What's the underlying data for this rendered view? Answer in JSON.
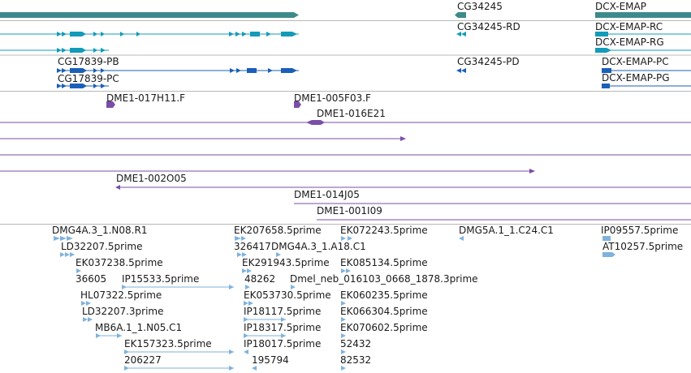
{
  "colors": {
    "gene": "#3d8a8c",
    "transcript": "#139bb8",
    "clone": "#7a4ea8",
    "est": "#7fb2dd",
    "divider": "#b8b8b8"
  },
  "gene_track": {
    "genes": [
      "CG34245",
      "DCX-EMAP"
    ]
  },
  "transcript_track": {
    "transcripts": [
      "CG34245-RD",
      "DCX-EMAP-RC",
      "DCX-EMAP-RG",
      "CG17839-PB",
      "CG34245-PD",
      "DCX-EMAP-PC",
      "CG17839-PC",
      "DCX-EMAP-PG"
    ]
  },
  "clone_track": {
    "clones": [
      "DME1-017H11.F",
      "DME1-005F03.F",
      "DME1-016E21",
      "DME1-002O05",
      "DME1-014J05",
      "DME1-001I09"
    ]
  },
  "est_track": {
    "ests": [
      "DMG4A.3_1.N08.R1",
      "EK207658.5prime",
      "EK072243.5prime",
      "DMG5A.1_1.C24.C1",
      "IP09557.5prime",
      "LD32207.5prime",
      "326417",
      "DMG4A.3_1.A18.C1",
      "AT10257.5prime",
      "EK037238.5prime",
      "EK291943.5prime",
      "EK085134.5prime",
      "36605",
      "IP15533.5prime",
      "48262",
      "Dmel_neb_016103_0668_1878.3prime",
      "HL07322.5prime",
      "EK053730.5prime",
      "EK060235.5prime",
      "LD32207.3prime",
      "IP18117.5prime",
      "EK066304.5prime",
      "MB6A.1_1.N05.C1",
      "IP18317.5prime",
      "EK070602.5prime",
      "EK157323.5prime",
      "IP18017.5prime",
      "52432",
      "206227",
      "195794",
      "82532"
    ]
  }
}
